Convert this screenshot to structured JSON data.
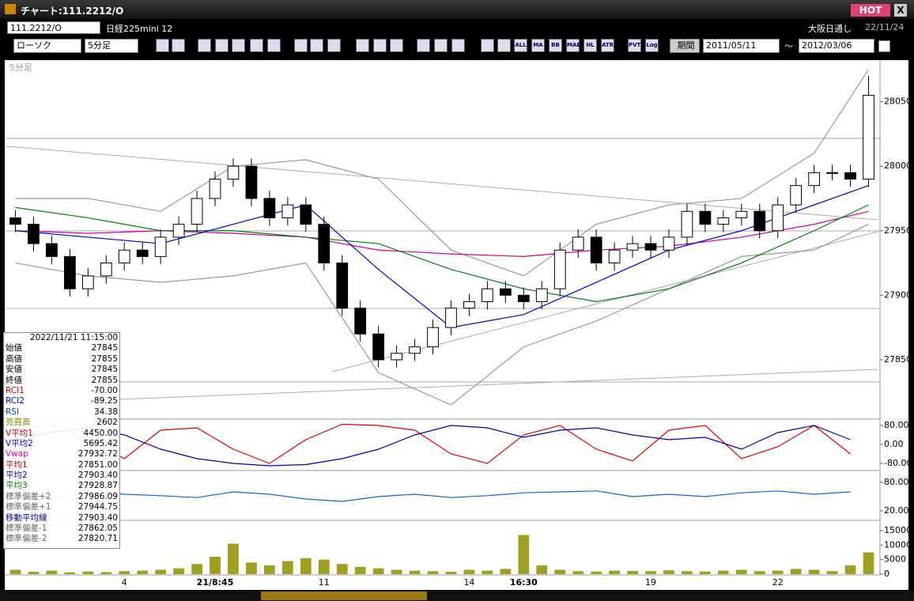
{
  "window": {
    "title": "チャート:111.2212/O",
    "hot": "HOT",
    "close": "X"
  },
  "toolbar": {
    "symbol": "111.2212/O",
    "name": "日経225mini 12",
    "market": "大阪日通し",
    "date": "22/11/24",
    "chart_type": "ローソク",
    "period": "5分足",
    "range_label": "期間",
    "from": "2011/05/11",
    "tilde": "～",
    "to": "2012/03/06",
    "icons": [
      "ALL",
      "MA",
      "BB",
      "MAE",
      "HL",
      "ATR",
      "PVT",
      "Log"
    ]
  },
  "info": {
    "datetime": "2022/11/21 11:15:00",
    "rows": [
      {
        "label": "始値",
        "value": "27845",
        "color": "#000000"
      },
      {
        "label": "高値",
        "value": "27855",
        "color": "#000000"
      },
      {
        "label": "安値",
        "value": "27845",
        "color": "#000000"
      },
      {
        "label": "終値",
        "value": "27855",
        "color": "#000000"
      },
      {
        "label": "RCI1",
        "value": "-70.00",
        "color": "#d00000"
      },
      {
        "label": "RCI2",
        "value": "-89.25",
        "color": "#0000c0"
      },
      {
        "label": "RSI",
        "value": "34.38",
        "color": "#0050d0"
      },
      {
        "label": "売買高",
        "value": "2602",
        "color": "#8a8a00"
      },
      {
        "label": "V平均1",
        "value": "4450.00",
        "color": "#d00000"
      },
      {
        "label": "V平均2",
        "value": "5695.42",
        "color": "#0000c0"
      },
      {
        "label": "Vwap",
        "value": "27932.72",
        "color": "#d000a0"
      },
      {
        "label": "平均1",
        "value": "27851.00",
        "color": "#d00000"
      },
      {
        "label": "平均2",
        "value": "27903.40",
        "color": "#0000c0"
      },
      {
        "label": "平均3",
        "value": "27928.87",
        "color": "#008000"
      },
      {
        "label": "標準偏差+2",
        "value": "27986.09",
        "color": "#666666"
      },
      {
        "label": "標準偏差+1",
        "value": "27944.75",
        "color": "#666666"
      },
      {
        "label": "移動平均線",
        "value": "27903.40",
        "color": "#000080"
      },
      {
        "label": "標準偏差-1",
        "value": "27862.05",
        "color": "#666666"
      },
      {
        "label": "標準偏差-2",
        "value": "27820.71",
        "color": "#666666"
      }
    ]
  },
  "chart_data": [
    {
      "type": "candlestick",
      "label": "5分足",
      "categories": [
        null,
        null,
        null,
        null,
        null,
        null,
        "4",
        null,
        null,
        null,
        null,
        "21/8:45",
        null,
        null,
        null,
        null,
        null,
        "11",
        null,
        null,
        null,
        null,
        null,
        null,
        null,
        "14",
        null,
        null,
        "16:30",
        null,
        null,
        null,
        null,
        null,
        null,
        "19",
        null,
        null,
        null,
        null,
        null,
        null,
        "22",
        null,
        null,
        null,
        null,
        null
      ],
      "open": [
        27960,
        27955,
        27940,
        27930,
        27905,
        27915,
        27925,
        27935,
        27930,
        27945,
        27955,
        27975,
        27990,
        28000,
        27975,
        27960,
        27970,
        27955,
        27925,
        27890,
        27870,
        27850,
        27855,
        27860,
        27875,
        27890,
        27895,
        27905,
        27900,
        27895,
        27905,
        27935,
        27945,
        27925,
        27935,
        27940,
        27935,
        27945,
        27965,
        27955,
        27960,
        27965,
        27950,
        27970,
        27985,
        27995,
        27995,
        27990
      ],
      "high": [
        27966,
        27961,
        27946,
        27936,
        27921,
        27931,
        27941,
        27941,
        27951,
        27961,
        27981,
        27996,
        28006,
        28006,
        27981,
        27976,
        27976,
        27961,
        27931,
        27896,
        27876,
        27861,
        27866,
        27881,
        27896,
        27901,
        27911,
        27911,
        27906,
        27911,
        27941,
        27951,
        27951,
        27941,
        27946,
        27946,
        27951,
        27971,
        27971,
        27966,
        27971,
        27971,
        27976,
        27991,
        28001,
        28001,
        28001,
        28070
      ],
      "low": [
        27949,
        27934,
        27924,
        27899,
        27899,
        27909,
        27919,
        27924,
        27924,
        27939,
        27949,
        27969,
        27984,
        27969,
        27954,
        27954,
        27949,
        27919,
        27884,
        27864,
        27844,
        27844,
        27849,
        27854,
        27869,
        27884,
        27889,
        27894,
        27889,
        27889,
        27899,
        27929,
        27919,
        27919,
        27929,
        27929,
        27929,
        27939,
        27949,
        27949,
        27954,
        27944,
        27944,
        27964,
        27979,
        27989,
        27984,
        27984
      ],
      "close": [
        27955,
        27940,
        27930,
        27905,
        27915,
        27925,
        27935,
        27930,
        27945,
        27955,
        27975,
        27990,
        28000,
        27975,
        27960,
        27970,
        27955,
        27925,
        27890,
        27870,
        27850,
        27855,
        27860,
        27875,
        27890,
        27895,
        27905,
        27900,
        27895,
        27905,
        27935,
        27945,
        27925,
        27935,
        27940,
        27935,
        27945,
        27965,
        27955,
        27960,
        27965,
        27950,
        27970,
        27985,
        27995,
        27995,
        27990,
        28055
      ],
      "color_up": "#ffffff",
      "color_down": "#000000",
      "ylim": [
        27804,
        28081
      ],
      "yticks": [
        27850,
        27900,
        27950,
        28000,
        28050
      ],
      "series": [
        {
          "color": "#999999",
          "x": [
            0,
            4,
            8,
            12,
            16,
            20,
            24,
            28,
            32,
            36,
            40,
            44,
            47
          ],
          "values": [
            27975,
            27975,
            27965,
            28000,
            28005,
            27990,
            27935,
            27915,
            27955,
            27970,
            27975,
            28010,
            28075
          ]
        },
        {
          "color": "#999999",
          "x": [
            0,
            4,
            8,
            12,
            16,
            20,
            24,
            28,
            32,
            36,
            40,
            44,
            47
          ],
          "values": [
            27925,
            27915,
            27910,
            27915,
            27925,
            27840,
            27815,
            27860,
            27880,
            27905,
            27930,
            27935,
            27955
          ]
        },
        {
          "color": "#d000a0",
          "x": [
            0,
            4,
            8,
            12,
            16,
            20,
            24,
            28,
            32,
            36,
            40,
            44,
            47
          ],
          "values": [
            27950,
            27948,
            27950,
            27948,
            27945,
            27935,
            27932,
            27930,
            27935,
            27938,
            27945,
            27955,
            27965
          ]
        },
        {
          "color": "#008000",
          "x": [
            0,
            4,
            8,
            12,
            16,
            20,
            24,
            28,
            32,
            36,
            40,
            44,
            47
          ],
          "values": [
            27968,
            27960,
            27950,
            27950,
            27945,
            27940,
            27920,
            27905,
            27895,
            27905,
            27925,
            27950,
            27970
          ]
        },
        {
          "color": "#0000d0",
          "x": [
            0,
            4,
            8,
            12,
            16,
            20,
            24,
            28,
            32,
            36,
            40,
            44,
            47
          ],
          "values": [
            27950,
            27945,
            27940,
            27955,
            27970,
            27920,
            27875,
            27885,
            27910,
            27935,
            27950,
            27970,
            27985
          ]
        }
      ]
    },
    {
      "type": "line",
      "x": [
        0,
        2,
        4,
        6,
        8,
        10,
        12,
        14,
        16,
        18,
        20,
        22,
        24,
        26,
        28,
        30,
        32,
        34,
        36,
        38,
        40,
        42,
        44,
        46
      ],
      "ylim": [
        -100,
        100
      ],
      "yticks": [
        {
          "value": 80,
          "label": "80.00"
        },
        {
          "value": 0,
          "label": "0.00"
        },
        {
          "value": -80,
          "label": "-80.00"
        }
      ],
      "series": [
        {
          "color": "#e00000",
          "values": [
            60,
            80,
            20,
            -60,
            60,
            70,
            -20,
            -80,
            20,
            85,
            80,
            60,
            -40,
            -80,
            40,
            80,
            -20,
            -70,
            60,
            80,
            -60,
            -10,
            80,
            -40
          ]
        },
        {
          "color": "#0000b0",
          "values": [
            20,
            50,
            70,
            40,
            -20,
            -60,
            -80,
            -90,
            -85,
            -60,
            -20,
            40,
            80,
            70,
            30,
            60,
            70,
            40,
            20,
            30,
            -20,
            50,
            80,
            20
          ]
        }
      ]
    },
    {
      "type": "line",
      "x": [
        0,
        2,
        4,
        6,
        8,
        10,
        12,
        14,
        16,
        18,
        20,
        22,
        24,
        26,
        28,
        30,
        32,
        34,
        36,
        38,
        40,
        42,
        44,
        46
      ],
      "ylim": [
        0,
        100
      ],
      "yticks": [
        {
          "value": 80,
          "label": "80.00"
        },
        {
          "value": 20,
          "label": "20.00"
        }
      ],
      "series": [
        {
          "color": "#1060e0",
          "values": [
            40,
            45,
            60,
            55,
            52,
            48,
            60,
            55,
            45,
            40,
            50,
            55,
            48,
            52,
            58,
            60,
            62,
            50,
            55,
            50,
            58,
            62,
            55,
            60
          ]
        }
      ]
    },
    {
      "type": "bar",
      "color": "#a0a020",
      "ylim": [
        0,
        18000
      ],
      "yticks": [
        0,
        5000,
        10000,
        15000
      ],
      "values": [
        1500,
        800,
        1200,
        600,
        900,
        700,
        1000,
        1200,
        1500,
        2000,
        3500,
        6000,
        10500,
        4000,
        3000,
        4500,
        5500,
        5000,
        3500,
        2500,
        2000,
        1500,
        1200,
        1000,
        800,
        1500,
        1200,
        1800,
        13500,
        3000,
        1500,
        1000,
        900,
        1200,
        1100,
        1000,
        1300,
        1000,
        900,
        1200,
        1500,
        1000,
        1200,
        1800,
        1500,
        1000,
        3000,
        7500
      ]
    }
  ]
}
